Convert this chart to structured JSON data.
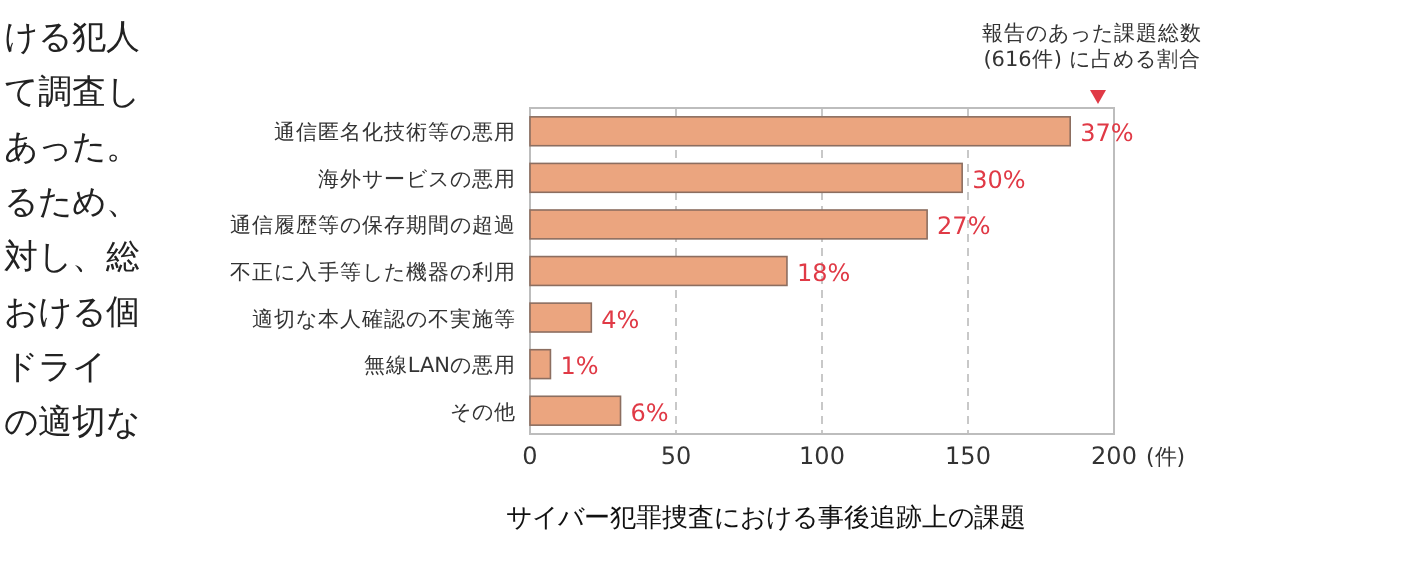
{
  "chart_data": {
    "type": "bar",
    "orientation": "horizontal",
    "title": "サイバー犯罪捜査における事後追跡上の課題",
    "xlabel": "(件)",
    "categories": [
      "通信匿名化技術等の悪用",
      "海外サービスの悪用",
      "通信履歴等の保存期間の超過",
      "不正に入手等した機器の利用",
      "適切な本人確認の不実施等",
      "無線LANの悪用",
      "その他"
    ],
    "values": [
      185,
      148,
      136,
      88,
      21,
      7,
      31
    ],
    "color": "#eba57f",
    "xlim": [
      0,
      200
    ],
    "xticks": [
      0,
      50,
      100,
      150,
      200
    ],
    "grid": "x",
    "annotations": [
      "報告のあった課題総数",
      "(616件) に占める割合",
      "ける犯人",
      "て調査し",
      "あった。",
      "るため、",
      "対し、総",
      "おける個",
      "ドライ",
      "の適切な",
      {
        "text": "37%",
        "x": 185,
        "y": "通信匿名化技術等の悪用"
      },
      {
        "text": "30%",
        "x": 148,
        "y": "海外サービスの悪用"
      },
      {
        "text": "27%",
        "x": 136,
        "y": "通信履歴等の保存期間の超過"
      },
      {
        "text": "18%",
        "x": 88,
        "y": "不正に入手等した機器の利用"
      },
      {
        "text": "4%",
        "x": 21,
        "y": "適切な本人確認の不実施等"
      },
      {
        "text": "1%",
        "x": 7,
        "y": "無線LANの悪用"
      },
      {
        "text": "6%",
        "x": 31,
        "y": "その他"
      }
    ]
  }
}
